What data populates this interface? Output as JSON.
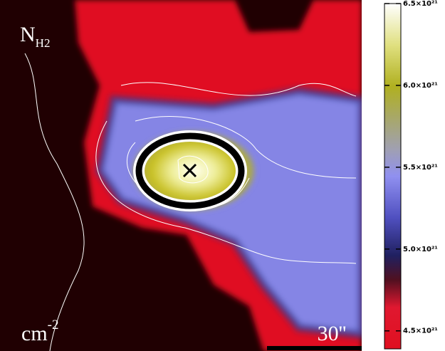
{
  "map": {
    "quantity": "N",
    "quantity_sub": "H2",
    "unit": "cm",
    "unit_exp": "-2",
    "scale_bar": "30''"
  },
  "colorbar": {
    "clim": [
      4.39e+21,
      6.5e+21
    ],
    "ticks": [
      {
        "value": 4.5e+21,
        "label": "4.5×10²¹"
      },
      {
        "value": 5e+21,
        "label": "5.0×10²¹"
      },
      {
        "value": 5.5e+21,
        "label": "5.5×10²¹"
      },
      {
        "value": 6e+21,
        "label": "6.0×10²¹"
      },
      {
        "value": 6.5e+21,
        "label": "6.5×10²¹"
      }
    ]
  }
}
